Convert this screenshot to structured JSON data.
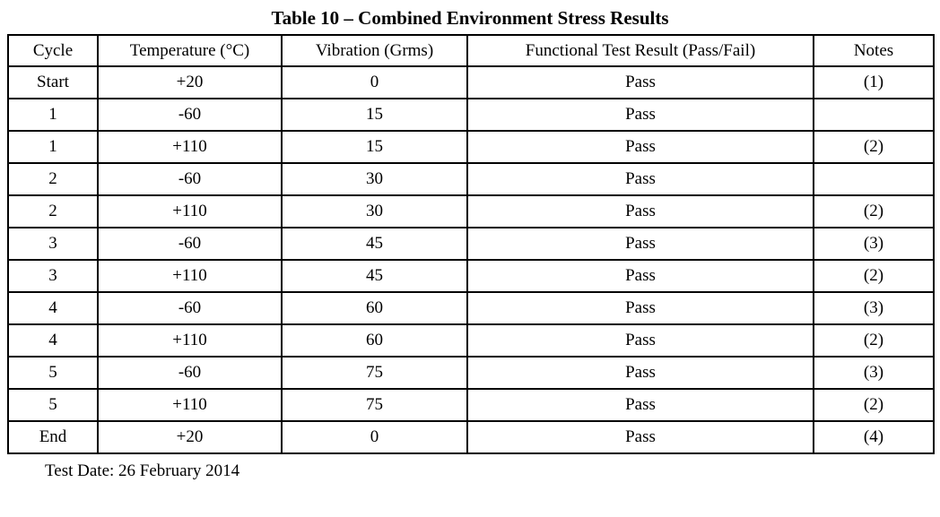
{
  "title": "Table 10 – Combined Environment Stress Results",
  "table": {
    "headers": [
      "Cycle",
      "Temperature (°C)",
      "Vibration (Grms)",
      "Functional Test Result (Pass/Fail)",
      "Notes"
    ],
    "column_keys": [
      "cycle",
      "temperature",
      "vibration",
      "result",
      "notes"
    ],
    "rows": [
      [
        "Start",
        "+20",
        "0",
        "Pass",
        "(1)"
      ],
      [
        "1",
        "-60",
        "15",
        "Pass",
        ""
      ],
      [
        "1",
        "+110",
        "15",
        "Pass",
        "(2)"
      ],
      [
        "2",
        "-60",
        "30",
        "Pass",
        ""
      ],
      [
        "2",
        "+110",
        "30",
        "Pass",
        "(2)"
      ],
      [
        "3",
        "-60",
        "45",
        "Pass",
        "(3)"
      ],
      [
        "3",
        "+110",
        "45",
        "Pass",
        "(2)"
      ],
      [
        "4",
        "-60",
        "60",
        "Pass",
        "(3)"
      ],
      [
        "4",
        "+110",
        "60",
        "Pass",
        "(2)"
      ],
      [
        "5",
        "-60",
        "75",
        "Pass",
        "(3)"
      ],
      [
        "5",
        "+110",
        "75",
        "Pass",
        "(2)"
      ],
      [
        "End",
        "+20",
        "0",
        "Pass",
        "(4)"
      ]
    ]
  },
  "footer": {
    "test_date": "Test Date: 26 February 2014"
  },
  "colors": {
    "text": "#000000",
    "background": "#ffffff",
    "border": "#000000"
  }
}
